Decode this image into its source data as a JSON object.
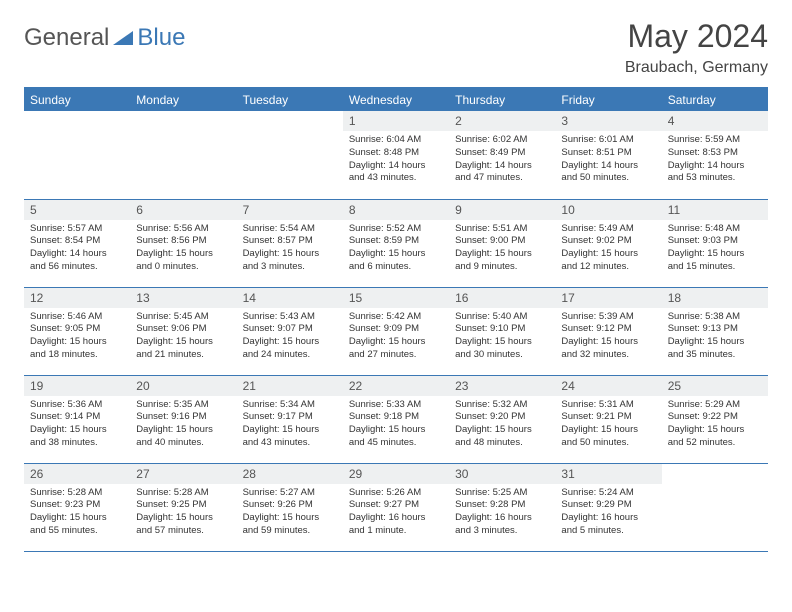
{
  "logo": {
    "text1": "General",
    "text2": "Blue"
  },
  "title": "May 2024",
  "location": "Braubach, Germany",
  "colors": {
    "accent": "#3b78b5",
    "header_bg": "#3b78b5",
    "header_fg": "#ffffff",
    "daynum_bg": "#eef0f1",
    "text": "#333333"
  },
  "weekdays": [
    "Sunday",
    "Monday",
    "Tuesday",
    "Wednesday",
    "Thursday",
    "Friday",
    "Saturday"
  ],
  "grid": [
    [
      {
        "empty": true
      },
      {
        "empty": true
      },
      {
        "empty": true
      },
      {
        "day": "1",
        "sunrise": "6:04 AM",
        "sunset": "8:48 PM",
        "daylight": "14 hours and 43 minutes."
      },
      {
        "day": "2",
        "sunrise": "6:02 AM",
        "sunset": "8:49 PM",
        "daylight": "14 hours and 47 minutes."
      },
      {
        "day": "3",
        "sunrise": "6:01 AM",
        "sunset": "8:51 PM",
        "daylight": "14 hours and 50 minutes."
      },
      {
        "day": "4",
        "sunrise": "5:59 AM",
        "sunset": "8:53 PM",
        "daylight": "14 hours and 53 minutes."
      }
    ],
    [
      {
        "day": "5",
        "sunrise": "5:57 AM",
        "sunset": "8:54 PM",
        "daylight": "14 hours and 56 minutes."
      },
      {
        "day": "6",
        "sunrise": "5:56 AM",
        "sunset": "8:56 PM",
        "daylight": "15 hours and 0 minutes."
      },
      {
        "day": "7",
        "sunrise": "5:54 AM",
        "sunset": "8:57 PM",
        "daylight": "15 hours and 3 minutes."
      },
      {
        "day": "8",
        "sunrise": "5:52 AM",
        "sunset": "8:59 PM",
        "daylight": "15 hours and 6 minutes."
      },
      {
        "day": "9",
        "sunrise": "5:51 AM",
        "sunset": "9:00 PM",
        "daylight": "15 hours and 9 minutes."
      },
      {
        "day": "10",
        "sunrise": "5:49 AM",
        "sunset": "9:02 PM",
        "daylight": "15 hours and 12 minutes."
      },
      {
        "day": "11",
        "sunrise": "5:48 AM",
        "sunset": "9:03 PM",
        "daylight": "15 hours and 15 minutes."
      }
    ],
    [
      {
        "day": "12",
        "sunrise": "5:46 AM",
        "sunset": "9:05 PM",
        "daylight": "15 hours and 18 minutes."
      },
      {
        "day": "13",
        "sunrise": "5:45 AM",
        "sunset": "9:06 PM",
        "daylight": "15 hours and 21 minutes."
      },
      {
        "day": "14",
        "sunrise": "5:43 AM",
        "sunset": "9:07 PM",
        "daylight": "15 hours and 24 minutes."
      },
      {
        "day": "15",
        "sunrise": "5:42 AM",
        "sunset": "9:09 PM",
        "daylight": "15 hours and 27 minutes."
      },
      {
        "day": "16",
        "sunrise": "5:40 AM",
        "sunset": "9:10 PM",
        "daylight": "15 hours and 30 minutes."
      },
      {
        "day": "17",
        "sunrise": "5:39 AM",
        "sunset": "9:12 PM",
        "daylight": "15 hours and 32 minutes."
      },
      {
        "day": "18",
        "sunrise": "5:38 AM",
        "sunset": "9:13 PM",
        "daylight": "15 hours and 35 minutes."
      }
    ],
    [
      {
        "day": "19",
        "sunrise": "5:36 AM",
        "sunset": "9:14 PM",
        "daylight": "15 hours and 38 minutes."
      },
      {
        "day": "20",
        "sunrise": "5:35 AM",
        "sunset": "9:16 PM",
        "daylight": "15 hours and 40 minutes."
      },
      {
        "day": "21",
        "sunrise": "5:34 AM",
        "sunset": "9:17 PM",
        "daylight": "15 hours and 43 minutes."
      },
      {
        "day": "22",
        "sunrise": "5:33 AM",
        "sunset": "9:18 PM",
        "daylight": "15 hours and 45 minutes."
      },
      {
        "day": "23",
        "sunrise": "5:32 AM",
        "sunset": "9:20 PM",
        "daylight": "15 hours and 48 minutes."
      },
      {
        "day": "24",
        "sunrise": "5:31 AM",
        "sunset": "9:21 PM",
        "daylight": "15 hours and 50 minutes."
      },
      {
        "day": "25",
        "sunrise": "5:29 AM",
        "sunset": "9:22 PM",
        "daylight": "15 hours and 52 minutes."
      }
    ],
    [
      {
        "day": "26",
        "sunrise": "5:28 AM",
        "sunset": "9:23 PM",
        "daylight": "15 hours and 55 minutes."
      },
      {
        "day": "27",
        "sunrise": "5:28 AM",
        "sunset": "9:25 PM",
        "daylight": "15 hours and 57 minutes."
      },
      {
        "day": "28",
        "sunrise": "5:27 AM",
        "sunset": "9:26 PM",
        "daylight": "15 hours and 59 minutes."
      },
      {
        "day": "29",
        "sunrise": "5:26 AM",
        "sunset": "9:27 PM",
        "daylight": "16 hours and 1 minute."
      },
      {
        "day": "30",
        "sunrise": "5:25 AM",
        "sunset": "9:28 PM",
        "daylight": "16 hours and 3 minutes."
      },
      {
        "day": "31",
        "sunrise": "5:24 AM",
        "sunset": "9:29 PM",
        "daylight": "16 hours and 5 minutes."
      },
      {
        "empty": true
      }
    ]
  ]
}
